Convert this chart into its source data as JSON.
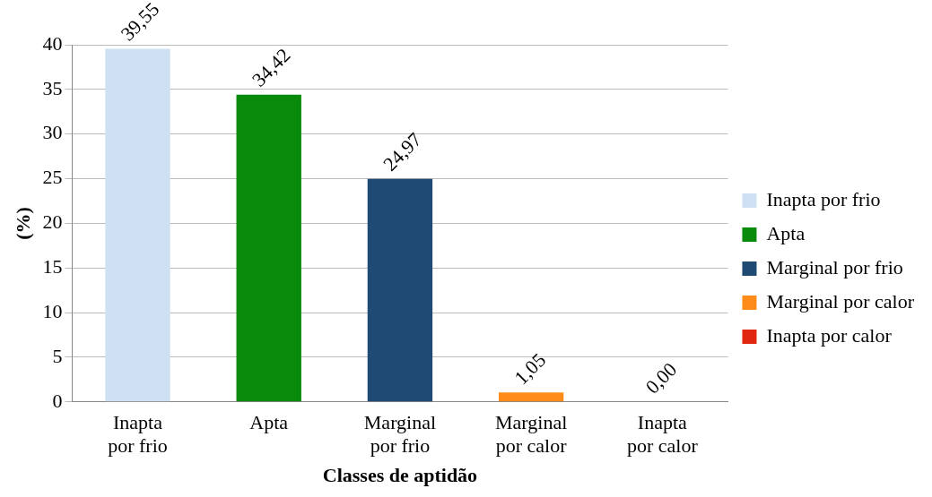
{
  "chart_data": {
    "type": "bar",
    "xlabel": "Classes de aptidão",
    "ylabel": "(%)",
    "categories": [
      "Inapta por frio",
      "Apta",
      "Marginal por frio",
      "Marginal por calor",
      "Inapta por calor"
    ],
    "series": [
      {
        "name": "Inapta por frio",
        "color": "#cfe0f3",
        "values": [
          39.55,
          null,
          null,
          null,
          null
        ],
        "value_labels": [
          "39,55",
          null,
          null,
          null,
          null
        ]
      },
      {
        "name": "Apta",
        "color": "#0a8a0a",
        "values": [
          null,
          34.42,
          null,
          null,
          null
        ],
        "value_labels": [
          null,
          "34,42",
          null,
          null,
          null
        ]
      },
      {
        "name": "Marginal por frio",
        "color": "#1f4a74",
        "values": [
          null,
          null,
          24.97,
          null,
          null
        ],
        "value_labels": [
          null,
          null,
          "24,97",
          null,
          null
        ]
      },
      {
        "name": "Marginal por calor",
        "color": "#ff8c1a",
        "values": [
          null,
          null,
          null,
          1.05,
          null
        ],
        "value_labels": [
          null,
          null,
          null,
          "1,05",
          null
        ]
      },
      {
        "name": "Inapta por calor",
        "color": "#e02810",
        "values": [
          null,
          null,
          null,
          null,
          0.0
        ],
        "value_labels": [
          null,
          null,
          null,
          null,
          "0,00"
        ]
      }
    ],
    "ylim": [
      0,
      40
    ],
    "yticks": [
      0,
      5,
      10,
      15,
      20,
      25,
      30,
      35,
      40
    ],
    "grid": "y",
    "legend": "right"
  }
}
